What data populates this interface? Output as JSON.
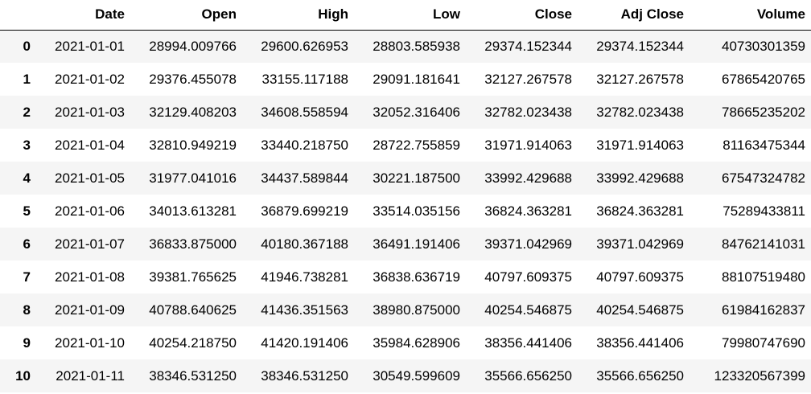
{
  "table": {
    "columns": [
      "",
      "Date",
      "Open",
      "High",
      "Low",
      "Close",
      "Adj Close",
      "Volume"
    ],
    "rows": [
      {
        "index": "0",
        "cells": [
          "2021-01-01",
          "28994.009766",
          "29600.626953",
          "28803.585938",
          "29374.152344",
          "29374.152344",
          "40730301359"
        ]
      },
      {
        "index": "1",
        "cells": [
          "2021-01-02",
          "29376.455078",
          "33155.117188",
          "29091.181641",
          "32127.267578",
          "32127.267578",
          "67865420765"
        ]
      },
      {
        "index": "2",
        "cells": [
          "2021-01-03",
          "32129.408203",
          "34608.558594",
          "32052.316406",
          "32782.023438",
          "32782.023438",
          "78665235202"
        ]
      },
      {
        "index": "3",
        "cells": [
          "2021-01-04",
          "32810.949219",
          "33440.218750",
          "28722.755859",
          "31971.914063",
          "31971.914063",
          "81163475344"
        ]
      },
      {
        "index": "4",
        "cells": [
          "2021-01-05",
          "31977.041016",
          "34437.589844",
          "30221.187500",
          "33992.429688",
          "33992.429688",
          "67547324782"
        ]
      },
      {
        "index": "5",
        "cells": [
          "2021-01-06",
          "34013.613281",
          "36879.699219",
          "33514.035156",
          "36824.363281",
          "36824.363281",
          "75289433811"
        ]
      },
      {
        "index": "6",
        "cells": [
          "2021-01-07",
          "36833.875000",
          "40180.367188",
          "36491.191406",
          "39371.042969",
          "39371.042969",
          "84762141031"
        ]
      },
      {
        "index": "7",
        "cells": [
          "2021-01-08",
          "39381.765625",
          "41946.738281",
          "36838.636719",
          "40797.609375",
          "40797.609375",
          "88107519480"
        ]
      },
      {
        "index": "8",
        "cells": [
          "2021-01-09",
          "40788.640625",
          "41436.351563",
          "38980.875000",
          "40254.546875",
          "40254.546875",
          "61984162837"
        ]
      },
      {
        "index": "9",
        "cells": [
          "2021-01-10",
          "40254.218750",
          "41420.191406",
          "35984.628906",
          "38356.441406",
          "38356.441406",
          "79980747690"
        ]
      },
      {
        "index": "10",
        "cells": [
          "2021-01-11",
          "38346.531250",
          "38346.531250",
          "30549.599609",
          "35566.656250",
          "35566.656250",
          "123320567399"
        ]
      }
    ]
  }
}
